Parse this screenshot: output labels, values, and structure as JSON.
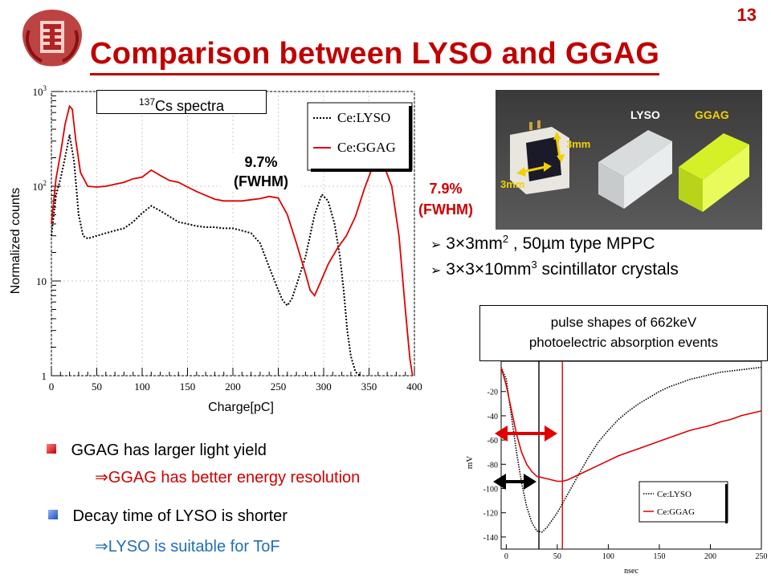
{
  "slide": {
    "number": "13",
    "title": "Comparison between LYSO and GGAG"
  },
  "colors": {
    "accent": "#c00000",
    "lyso": "#000000",
    "ggag": "#e00000",
    "blue_text": "#1f6fb5"
  },
  "spectrum_box": {
    "sup": "137",
    "text": "Cs spectra"
  },
  "annotations": {
    "lyso_res_value": "9.7%",
    "lyso_res_label": "(FWHM)",
    "ggag_res_value": "7.9%",
    "ggag_res_label": "(FWHM)"
  },
  "photo": {
    "lyso_label": "LYSO",
    "ggag_label": "GGAG",
    "dim_vertical": "3mm",
    "dim_horizontal": "3mm"
  },
  "specs": {
    "line1_pre": "3×3mm",
    "line1_sup": "2",
    "line1_post": " , 50µm type MPPC",
    "line2_pre": "3×3×10mm",
    "line2_sup": "3",
    "line2_post": " scintillator crystals"
  },
  "pulse_box": {
    "line1": "pulse shapes of 662keV",
    "line2": "photoelectric absorption events"
  },
  "conclusions": {
    "c1_main": "GGAG has larger light yield",
    "c1_sub": "⇒GGAG has better energy resolution",
    "c2_main": "Decay time of LYSO is shorter",
    "c2_sub": "⇒LYSO is suitable for ToF"
  },
  "chart_data": [
    {
      "type": "line",
      "xlabel": "Charge[pC]",
      "ylabel": "Normalized counts",
      "yscale": "log",
      "xlim": [
        0,
        400
      ],
      "ylim": [
        1,
        1000
      ],
      "x_ticks": [
        "0",
        "50",
        "100",
        "150",
        "200",
        "250",
        "300",
        "350",
        "400"
      ],
      "y_ticks": [
        {
          "value": 1,
          "label": "1"
        },
        {
          "value": 10,
          "label": "10"
        },
        {
          "value": 100,
          "label": "10",
          "sup": "2"
        },
        {
          "value": 1000,
          "label": "10",
          "sup": "3"
        }
      ],
      "legend_position": "top-right",
      "series": [
        {
          "name": "Ce:LYSO",
          "style": "dotted",
          "color": "#000000",
          "points": [
            [
              0,
              30
            ],
            [
              5,
              80
            ],
            [
              10,
              120
            ],
            [
              15,
              200
            ],
            [
              20,
              350
            ],
            [
              25,
              180
            ],
            [
              30,
              50
            ],
            [
              35,
              30
            ],
            [
              40,
              28
            ],
            [
              50,
              30
            ],
            [
              60,
              32
            ],
            [
              70,
              34
            ],
            [
              80,
              36
            ],
            [
              90,
              42
            ],
            [
              100,
              52
            ],
            [
              110,
              62
            ],
            [
              120,
              55
            ],
            [
              130,
              48
            ],
            [
              140,
              42
            ],
            [
              150,
              40
            ],
            [
              160,
              38
            ],
            [
              170,
              37
            ],
            [
              180,
              37
            ],
            [
              190,
              36
            ],
            [
              200,
              36
            ],
            [
              210,
              34
            ],
            [
              220,
              32
            ],
            [
              230,
              25
            ],
            [
              240,
              14
            ],
            [
              250,
              8
            ],
            [
              255,
              6.2
            ],
            [
              260,
              5.5
            ],
            [
              265,
              6.5
            ],
            [
              270,
              9
            ],
            [
              280,
              18
            ],
            [
              290,
              50
            ],
            [
              298,
              82
            ],
            [
              305,
              70
            ],
            [
              312,
              40
            ],
            [
              318,
              18
            ],
            [
              322,
              8
            ],
            [
              326,
              3
            ],
            [
              330,
              1.6
            ],
            [
              335,
              1.1
            ],
            [
              340,
              1
            ]
          ]
        },
        {
          "name": "Ce:GGAG",
          "style": "solid",
          "color": "#e00000",
          "points": [
            [
              0,
              40
            ],
            [
              5,
              120
            ],
            [
              10,
              220
            ],
            [
              15,
              450
            ],
            [
              20,
              700
            ],
            [
              23,
              650
            ],
            [
              27,
              300
            ],
            [
              32,
              140
            ],
            [
              40,
              100
            ],
            [
              50,
              98
            ],
            [
              60,
              100
            ],
            [
              70,
              105
            ],
            [
              80,
              110
            ],
            [
              90,
              120
            ],
            [
              100,
              125
            ],
            [
              110,
              148
            ],
            [
              120,
              130
            ],
            [
              130,
              115
            ],
            [
              140,
              110
            ],
            [
              150,
              98
            ],
            [
              160,
              88
            ],
            [
              170,
              80
            ],
            [
              180,
              73
            ],
            [
              190,
              70
            ],
            [
              200,
              70
            ],
            [
              210,
              70
            ],
            [
              220,
              72
            ],
            [
              230,
              74
            ],
            [
              240,
              78
            ],
            [
              250,
              75
            ],
            [
              260,
              50
            ],
            [
              270,
              25
            ],
            [
              280,
              12
            ],
            [
              285,
              8
            ],
            [
              290,
              7
            ],
            [
              295,
              9
            ],
            [
              305,
              15
            ],
            [
              315,
              22
            ],
            [
              325,
              30
            ],
            [
              335,
              48
            ],
            [
              345,
              95
            ],
            [
              355,
              170
            ],
            [
              360,
              195
            ],
            [
              365,
              180
            ],
            [
              375,
              100
            ],
            [
              383,
              30
            ],
            [
              390,
              5
            ],
            [
              395,
              1.5
            ],
            [
              398,
              1
            ]
          ]
        }
      ]
    },
    {
      "type": "line",
      "xlabel": "nsec",
      "ylabel": "mV",
      "xlim": [
        -5,
        250
      ],
      "ylim": [
        -150,
        5
      ],
      "x_ticks": [
        "0",
        "50",
        "100",
        "150",
        "200",
        "250"
      ],
      "y_ticks": [
        "-20",
        "-40",
        "-60",
        "-80",
        "-100",
        "-120",
        "-140"
      ],
      "markers": {
        "lyso_peak_time": 32,
        "ggag_peak_time": 55
      },
      "legend_position": "bottom-right",
      "series": [
        {
          "name": "Ce:LYSO",
          "style": "dotted",
          "color": "#000000",
          "points": [
            [
              -5,
              0
            ],
            [
              0,
              -10
            ],
            [
              5,
              -40
            ],
            [
              10,
              -70
            ],
            [
              15,
              -95
            ],
            [
              20,
              -115
            ],
            [
              25,
              -128
            ],
            [
              30,
              -135
            ],
            [
              35,
              -136
            ],
            [
              40,
              -132
            ],
            [
              50,
              -120
            ],
            [
              60,
              -105
            ],
            [
              70,
              -90
            ],
            [
              80,
              -75
            ],
            [
              90,
              -62
            ],
            [
              100,
              -52
            ],
            [
              110,
              -43
            ],
            [
              120,
              -36
            ],
            [
              130,
              -30
            ],
            [
              140,
              -25
            ],
            [
              150,
              -20
            ],
            [
              160,
              -16
            ],
            [
              170,
              -13
            ],
            [
              180,
              -10
            ],
            [
              190,
              -8
            ],
            [
              200,
              -6
            ],
            [
              210,
              -4
            ],
            [
              220,
              -3
            ],
            [
              230,
              -2
            ],
            [
              240,
              -1
            ],
            [
              250,
              0
            ]
          ]
        },
        {
          "name": "Ce:GGAG",
          "style": "solid",
          "color": "#e00000",
          "points": [
            [
              -5,
              0
            ],
            [
              0,
              -15
            ],
            [
              5,
              -35
            ],
            [
              10,
              -55
            ],
            [
              15,
              -70
            ],
            [
              20,
              -80
            ],
            [
              25,
              -86
            ],
            [
              30,
              -90
            ],
            [
              40,
              -92
            ],
            [
              50,
              -94
            ],
            [
              55,
              -94
            ],
            [
              60,
              -93
            ],
            [
              70,
              -89
            ],
            [
              80,
              -85
            ],
            [
              90,
              -81
            ],
            [
              100,
              -77
            ],
            [
              110,
              -73
            ],
            [
              120,
              -70
            ],
            [
              130,
              -67
            ],
            [
              140,
              -64
            ],
            [
              150,
              -61
            ],
            [
              160,
              -58
            ],
            [
              170,
              -55
            ],
            [
              180,
              -52
            ],
            [
              190,
              -50
            ],
            [
              200,
              -48
            ],
            [
              210,
              -45
            ],
            [
              220,
              -43
            ],
            [
              230,
              -40
            ],
            [
              240,
              -38
            ],
            [
              250,
              -36
            ]
          ]
        }
      ]
    }
  ]
}
